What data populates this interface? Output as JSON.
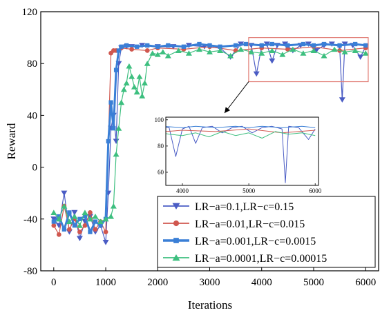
{
  "chart_data": {
    "type": "line",
    "title": "",
    "xlabel": "Iterations",
    "ylabel": "Reward",
    "xlim": [
      -250,
      6250
    ],
    "ylim": [
      -80,
      120
    ],
    "xticks": [
      0,
      1000,
      2000,
      3000,
      4000,
      5000,
      6000
    ],
    "yticks": [
      -80,
      -40,
      0,
      40,
      80,
      120
    ],
    "grid": false,
    "legend_position": "bottom-right",
    "highlight_box": {
      "x": [
        3750,
        6050
      ],
      "y": [
        66,
        100
      ]
    },
    "inset": {
      "xlim": [
        3750,
        6050
      ],
      "ylim": [
        50,
        102
      ],
      "xticks": [
        4000,
        5000,
        6000
      ],
      "yticks": [
        60,
        80,
        100
      ]
    },
    "series": [
      {
        "name": "LR−a=0.1,LR−c=0.15",
        "color": "#4a5cc4",
        "marker": "triangle-down",
        "line_width": 1.2,
        "x": [
          0,
          100,
          200,
          300,
          400,
          500,
          600,
          700,
          800,
          900,
          1000,
          1050,
          1100,
          1150,
          1200,
          1250,
          1300,
          1400,
          1500,
          1700,
          2000,
          2300,
          2600,
          2900,
          3200,
          3400,
          3600,
          3800,
          3900,
          4000,
          4100,
          4200,
          4300,
          4450,
          4600,
          4750,
          4900,
          5050,
          5200,
          5350,
          5500,
          5550,
          5600,
          5750,
          5900,
          6000
        ],
        "values": [
          -40,
          -45,
          -20,
          -50,
          -35,
          -55,
          -42,
          -38,
          -50,
          -45,
          -58,
          -20,
          30,
          40,
          20,
          80,
          92,
          93,
          93,
          94,
          93,
          93,
          94,
          93,
          92,
          85,
          95,
          94,
          72,
          93,
          95,
          82,
          94,
          95,
          90,
          94,
          95,
          90,
          94,
          95,
          93,
          52,
          95,
          94,
          85,
          93
        ]
      },
      {
        "name": "LR−a=0.01,LR−c=0.015",
        "color": "#d0574f",
        "marker": "circle",
        "line_width": 1.2,
        "x": [
          0,
          100,
          200,
          300,
          400,
          500,
          600,
          700,
          800,
          900,
          1000,
          1100,
          1150,
          1200,
          1300,
          1500,
          1800,
          2000,
          2500,
          3000,
          3500,
          4000,
          4500,
          5000,
          5500,
          6000
        ],
        "values": [
          -45,
          -52,
          -30,
          -48,
          -40,
          -50,
          -45,
          -35,
          -48,
          -42,
          -50,
          88,
          90,
          90,
          92,
          91,
          90,
          92,
          91,
          93,
          90,
          92,
          91,
          93,
          90,
          92
        ]
      },
      {
        "name": "LR−a=0.001,LR−c=0.0015",
        "color": "#3a7fd6",
        "marker": "square",
        "line_width": 3,
        "x": [
          0,
          100,
          200,
          300,
          400,
          500,
          600,
          700,
          800,
          900,
          1000,
          1050,
          1100,
          1150,
          1200,
          1250,
          1300,
          1400,
          1600,
          1800,
          2000,
          2200,
          2500,
          2800,
          3000,
          3200,
          3500,
          3700,
          4000,
          4200,
          4500,
          4800,
          5000,
          5200,
          5500,
          5800,
          6000
        ],
        "values": [
          -42,
          -38,
          -48,
          -35,
          -45,
          -40,
          -38,
          -50,
          -42,
          -45,
          -40,
          20,
          50,
          30,
          75,
          90,
          93,
          94,
          93,
          94,
          93,
          94,
          93,
          95,
          94,
          93,
          94,
          95,
          94,
          95,
          94,
          95,
          94,
          95,
          94,
          95,
          94
        ]
      },
      {
        "name": "LR−a=0.0001,LR−c=0.00015",
        "color": "#3dbf7f",
        "marker": "triangle-up",
        "line_width": 1.2,
        "x": [
          0,
          100,
          200,
          300,
          400,
          500,
          600,
          700,
          800,
          900,
          1000,
          1100,
          1150,
          1200,
          1250,
          1300,
          1350,
          1400,
          1450,
          1500,
          1550,
          1600,
          1650,
          1700,
          1750,
          1800,
          1900,
          2000,
          2100,
          2200,
          2400,
          2600,
          2800,
          3000,
          3200,
          3400,
          3600,
          3800,
          4000,
          4200,
          4400,
          4600,
          4800,
          5000,
          5200,
          5400,
          5600,
          5800,
          6000
        ],
        "values": [
          -35,
          -40,
          -30,
          -42,
          -38,
          -45,
          -35,
          -40,
          -38,
          -42,
          -40,
          -38,
          -30,
          10,
          30,
          50,
          60,
          65,
          78,
          70,
          62,
          58,
          70,
          55,
          65,
          80,
          88,
          87,
          89,
          86,
          90,
          88,
          91,
          89,
          90,
          86,
          91,
          89,
          88,
          90,
          87,
          91,
          88,
          90,
          86,
          91,
          89,
          90,
          88
        ]
      }
    ]
  }
}
